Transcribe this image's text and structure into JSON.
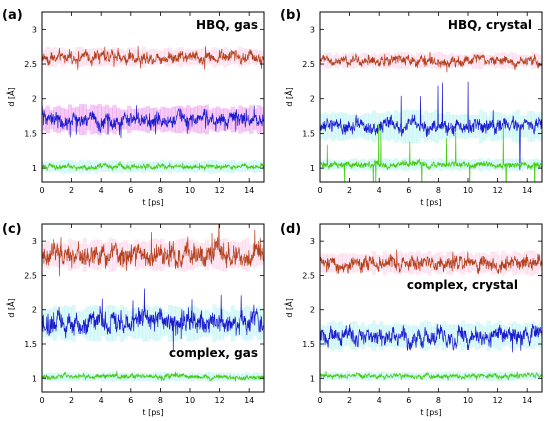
{
  "chart_data": [
    {
      "type": "line",
      "panel_label": "(a)",
      "title": "HBQ, gas",
      "xlabel": "t [ps]",
      "ylabel": "d [Å]",
      "xlim": [
        0,
        15
      ],
      "ylim": [
        0.8,
        3.25
      ],
      "xticks": [
        0,
        2,
        4,
        6,
        8,
        10,
        12,
        14
      ],
      "yticks": [
        1,
        1.5,
        2,
        2.5,
        3
      ],
      "title_position": "top-right",
      "series": [
        {
          "color": "#b5401c",
          "band_color": "#f9a8d4",
          "mean": 2.6,
          "amplitude": 0.07,
          "spike": 0.05,
          "band_halfwidth": 0.12
        },
        {
          "color": "#1c1ccf",
          "band_color": "#e040e0",
          "mean": 1.7,
          "amplitude": 0.09,
          "spike": 0.08,
          "band_halfwidth": 0.18
        },
        {
          "color": "#44cc11",
          "band_color": "#7fe8e8",
          "mean": 1.02,
          "amplitude": 0.03,
          "spike": 0.02,
          "band_halfwidth": 0.08
        }
      ]
    },
    {
      "type": "line",
      "panel_label": "(b)",
      "title": "HBQ, crystal",
      "xlabel": "t [ps]",
      "ylabel": "d [Å]",
      "xlim": [
        0,
        15
      ],
      "ylim": [
        0.8,
        3.25
      ],
      "xticks": [
        0,
        2,
        4,
        6,
        8,
        10,
        12,
        14
      ],
      "yticks": [
        1,
        1.5,
        2,
        2.5,
        3
      ],
      "title_position": "top-right",
      "series": [
        {
          "color": "#b5401c",
          "band_color": "#f9a8d4",
          "mean": 2.55,
          "amplitude": 0.06,
          "spike": 0.04,
          "band_halfwidth": 0.1
        },
        {
          "color": "#1c1ccf",
          "band_color": "#7fe8e8",
          "mean": 1.6,
          "amplitude": 0.09,
          "spike": 0.25,
          "band_halfwidth": 0.2
        },
        {
          "color": "#44cc11",
          "band_color": "#7fe8e8",
          "mean": 1.05,
          "amplitude": 0.04,
          "spike": 0.25,
          "band_halfwidth": 0.08
        }
      ]
    },
    {
      "type": "line",
      "panel_label": "(c)",
      "title": "complex, gas",
      "xlabel": "t [ps]",
      "ylabel": "d [Å]",
      "xlim": [
        0,
        15
      ],
      "ylim": [
        0.8,
        3.25
      ],
      "xticks": [
        0,
        2,
        4,
        6,
        8,
        10,
        12,
        14
      ],
      "yticks": [
        1,
        1.5,
        2,
        2.5,
        3
      ],
      "title_position": "center-right",
      "series": [
        {
          "color": "#b5401c",
          "band_color": "#f9a8d4",
          "mean": 2.8,
          "amplitude": 0.14,
          "spike": 0.12,
          "band_halfwidth": 0.2
        },
        {
          "color": "#1c1ccf",
          "band_color": "#7fe8e8",
          "mean": 1.8,
          "amplitude": 0.14,
          "spike": 0.12,
          "band_halfwidth": 0.22
        },
        {
          "color": "#44cc11",
          "band_color": "#7fe8e8",
          "mean": 1.02,
          "amplitude": 0.03,
          "spike": 0.02,
          "band_halfwidth": 0.06
        }
      ]
    },
    {
      "type": "line",
      "panel_label": "(d)",
      "title": "complex, crystal",
      "xlabel": "t [ps]",
      "ylabel": "d [Å]",
      "xlim": [
        0,
        15
      ],
      "ylim": [
        0.8,
        3.25
      ],
      "xticks": [
        0,
        2,
        4,
        6,
        8,
        10,
        12,
        14
      ],
      "yticks": [
        1,
        1.5,
        2,
        2.5,
        3
      ],
      "title_position": "upper-center-right",
      "series": [
        {
          "color": "#b5401c",
          "band_color": "#f9a8d4",
          "mean": 2.68,
          "amplitude": 0.09,
          "spike": 0.06,
          "band_halfwidth": 0.15
        },
        {
          "color": "#1c1ccf",
          "band_color": "#7fe8e8",
          "mean": 1.62,
          "amplitude": 0.11,
          "spike": 0.1,
          "band_halfwidth": 0.18
        },
        {
          "color": "#44cc11",
          "band_color": "#7fe8e8",
          "mean": 1.03,
          "amplitude": 0.03,
          "spike": 0.02,
          "band_halfwidth": 0.06
        }
      ]
    }
  ]
}
